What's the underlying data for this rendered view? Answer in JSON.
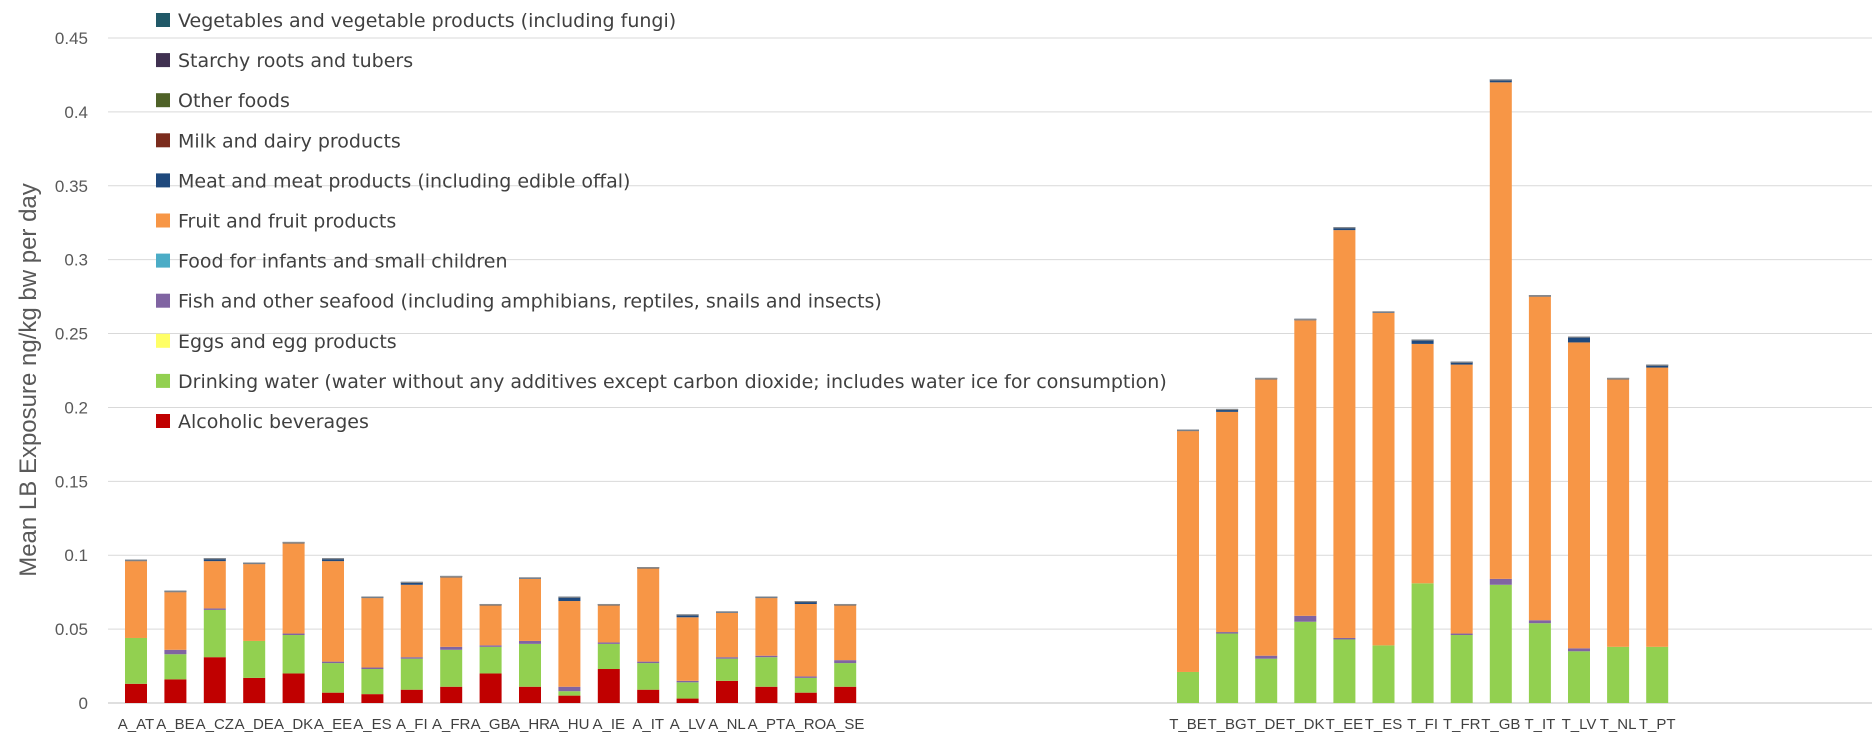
{
  "chart_data": {
    "type": "bar",
    "stacked": true,
    "ylabel": "Mean LB Exposure ng/kg bw per day",
    "ylim": [
      0,
      0.45
    ],
    "yticks": [
      0,
      0.05,
      0.1,
      0.15,
      0.2,
      0.25,
      0.3,
      0.35,
      0.4,
      0.45
    ],
    "ytick_labels": [
      "0",
      "0.05",
      "0.1",
      "0.15",
      "0.2",
      "0.25",
      "0.3",
      "0.35",
      "0.4",
      "0.45"
    ],
    "grid": true,
    "legend_position": "top-left",
    "groups": [
      {
        "categories": [
          "A_AT",
          "A_BE",
          "A_CZ",
          "A_DE",
          "A_DK",
          "A_EE",
          "A_ES",
          "A_FI",
          "A_FR",
          "A_GB",
          "A_HR",
          "A_HU",
          "A_IE",
          "A_IT",
          "A_LV",
          "A_NL",
          "A_PT",
          "A_RO",
          "A_SE"
        ]
      },
      {
        "categories": [
          "T_BE",
          "T_BG",
          "T_DE",
          "T_DK",
          "T_EE",
          "T_ES",
          "T_FI",
          "T_FR",
          "T_GB",
          "T_IT",
          "T_LV",
          "T_NL",
          "T_PT"
        ]
      }
    ],
    "categories": [
      "A_AT",
      "A_BE",
      "A_CZ",
      "A_DE",
      "A_DK",
      "A_EE",
      "A_ES",
      "A_FI",
      "A_FR",
      "A_GB",
      "A_HR",
      "A_HU",
      "A_IE",
      "A_IT",
      "A_LV",
      "A_NL",
      "A_PT",
      "A_RO",
      "A_SE",
      "T_BE",
      "T_BG",
      "T_DE",
      "T_DK",
      "T_EE",
      "T_ES",
      "T_FI",
      "T_FR",
      "T_GB",
      "T_IT",
      "T_LV",
      "T_NL",
      "T_PT"
    ],
    "series": [
      {
        "name": "Alcoholic beverages",
        "color": "#c00000",
        "values": [
          0.013,
          0.016,
          0.031,
          0.017,
          0.02,
          0.007,
          0.006,
          0.009,
          0.011,
          0.02,
          0.011,
          0.005,
          0.023,
          0.009,
          0.003,
          0.015,
          0.011,
          0.007,
          0.011,
          0,
          0,
          0,
          0,
          0,
          0,
          0,
          0,
          0,
          0,
          0,
          0,
          0
        ]
      },
      {
        "name": "Drinking water (water without any additives except carbon dioxide; includes water ice for consumption)",
        "color": "#92d050",
        "values": [
          0.031,
          0.017,
          0.032,
          0.025,
          0.026,
          0.02,
          0.017,
          0.021,
          0.025,
          0.018,
          0.029,
          0.003,
          0.017,
          0.018,
          0.011,
          0.015,
          0.02,
          0.01,
          0.016,
          0.021,
          0.047,
          0.03,
          0.055,
          0.043,
          0.039,
          0.081,
          0.046,
          0.08,
          0.054,
          0.035,
          0.038,
          0.038
        ]
      },
      {
        "name": "Eggs and egg products",
        "color": "#ffff66",
        "values": [
          0,
          0,
          0,
          0,
          0,
          0,
          0,
          0,
          0,
          0,
          0,
          0,
          0,
          0,
          0,
          0,
          0,
          0,
          0,
          0,
          0,
          0,
          0,
          0,
          0,
          0,
          0,
          0,
          0,
          0,
          0,
          0
        ]
      },
      {
        "name": "Fish and other seafood (including amphibians, reptiles, snails and insects)",
        "color": "#8064a2",
        "values": [
          0,
          0.003,
          0.001,
          0,
          0.001,
          0.001,
          0.001,
          0.001,
          0.002,
          0.001,
          0.002,
          0.003,
          0.001,
          0.001,
          0.001,
          0.001,
          0.001,
          0.001,
          0.002,
          0,
          0.001,
          0.002,
          0.004,
          0.001,
          0,
          0,
          0.001,
          0.004,
          0.002,
          0.002,
          0,
          0
        ]
      },
      {
        "name": "Food for infants and small children",
        "color": "#4bacc6",
        "values": [
          0,
          0,
          0,
          0,
          0,
          0,
          0,
          0,
          0,
          0,
          0,
          0,
          0,
          0,
          0,
          0,
          0,
          0,
          0,
          0,
          0,
          0,
          0,
          0,
          0,
          0,
          0,
          0,
          0,
          0,
          0,
          0
        ]
      },
      {
        "name": "Fruit and fruit products",
        "color": "#f79646",
        "values": [
          0.052,
          0.039,
          0.032,
          0.052,
          0.061,
          0.068,
          0.047,
          0.049,
          0.047,
          0.027,
          0.042,
          0.058,
          0.025,
          0.063,
          0.043,
          0.03,
          0.039,
          0.049,
          0.037,
          0.163,
          0.149,
          0.187,
          0.2,
          0.276,
          0.225,
          0.162,
          0.182,
          0.336,
          0.219,
          0.207,
          0.181,
          0.189
        ]
      },
      {
        "name": "Meat and meat products (including edible offal)",
        "color": "#1f497d",
        "values": [
          0.001,
          0.001,
          0.002,
          0.001,
          0.001,
          0.002,
          0.001,
          0.002,
          0.001,
          0.001,
          0.001,
          0.003,
          0.001,
          0.001,
          0.002,
          0.001,
          0.001,
          0.002,
          0.001,
          0.001,
          0.002,
          0.001,
          0.001,
          0.002,
          0.001,
          0.003,
          0.002,
          0.002,
          0.001,
          0.004,
          0.001,
          0.002
        ]
      },
      {
        "name": "Milk and dairy products",
        "color": "#7b2c1d",
        "values": [
          0,
          0,
          0,
          0,
          0,
          0,
          0,
          0,
          0,
          0,
          0,
          0,
          0,
          0,
          0,
          0,
          0,
          0,
          0,
          0,
          0,
          0,
          0,
          0,
          0,
          0,
          0,
          0,
          0,
          0,
          0,
          0
        ]
      },
      {
        "name": "Other foods",
        "color": "#4f6228",
        "values": [
          0,
          0,
          0,
          0,
          0,
          0,
          0,
          0,
          0,
          0,
          0,
          0,
          0,
          0,
          0,
          0,
          0,
          0,
          0,
          0,
          0,
          0,
          0,
          0,
          0,
          0,
          0,
          0,
          0,
          0,
          0,
          0
        ]
      },
      {
        "name": "Starchy roots and tubers",
        "color": "#403151",
        "values": [
          0,
          0,
          0,
          0,
          0,
          0,
          0,
          0,
          0,
          0,
          0,
          0,
          0,
          0,
          0,
          0,
          0,
          0,
          0,
          0,
          0,
          0,
          0,
          0,
          0,
          0,
          0,
          0,
          0,
          0,
          0,
          0
        ]
      },
      {
        "name": "Vegetables and vegetable products (including fungi)",
        "color": "#215968",
        "values": [
          0,
          0,
          0,
          0,
          0,
          0,
          0,
          0,
          0,
          0,
          0,
          0,
          0,
          0,
          0,
          0,
          0,
          0,
          0,
          0,
          0,
          0,
          0,
          0,
          0,
          0,
          0,
          0,
          0,
          0,
          0,
          0
        ]
      }
    ],
    "legend_order": [
      "Vegetables and vegetable products (including fungi)",
      "Starchy roots and tubers",
      "Other foods",
      "Milk and dairy products",
      "Meat and meat products (including edible offal)",
      "Fruit and fruit products",
      "Food for infants and small children",
      "Fish and other seafood (including amphibians, reptiles, snails and insects)",
      "Eggs and egg products",
      "Drinking water (water without any additives except carbon dioxide; includes water ice for consumption)",
      "Alcoholic beverages"
    ]
  }
}
